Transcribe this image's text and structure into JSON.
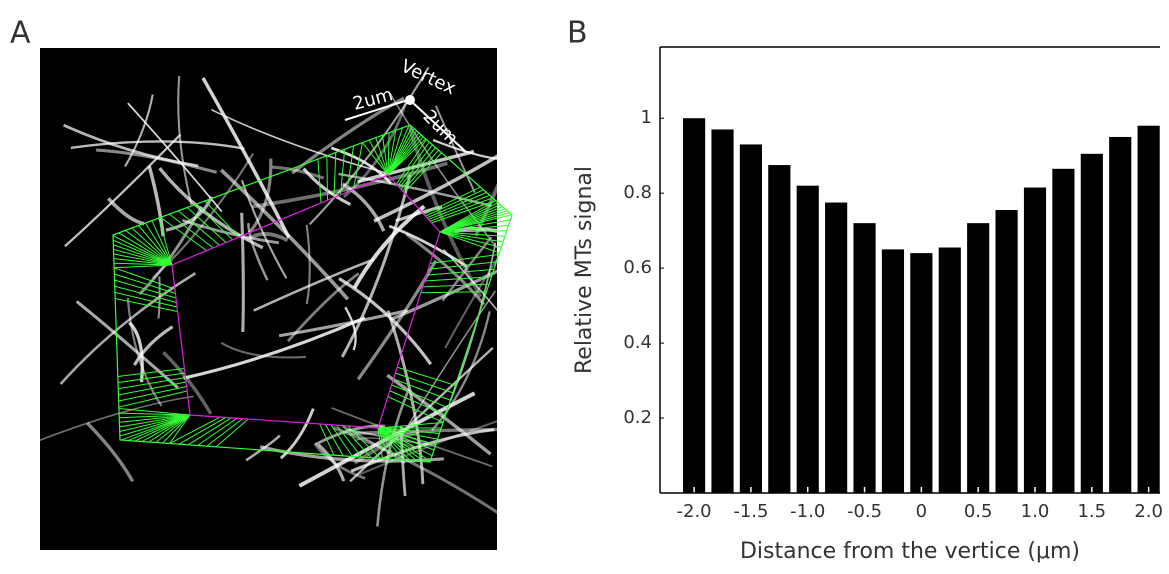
{
  "panel_labels": [
    "A",
    "B"
  ],
  "image_annotations": [
    "Vertex",
    "2um",
    "2um"
  ],
  "chart_data": {
    "type": "bar",
    "x": [
      -2.0,
      -1.75,
      -1.5,
      -1.25,
      -1.0,
      -0.75,
      -0.5,
      -0.25,
      0,
      0.25,
      0.5,
      0.75,
      1.0,
      1.25,
      1.5,
      1.75,
      2.0
    ],
    "values": [
      1.0,
      0.97,
      0.93,
      0.875,
      0.82,
      0.775,
      0.72,
      0.65,
      0.64,
      0.655,
      0.72,
      0.755,
      0.815,
      0.865,
      0.905,
      0.95,
      0.98
    ],
    "color": "#000000",
    "xlabel": "Distance from the vertice (μm)",
    "ylabel": "Relative MTs signal",
    "xlim": [
      -2.3,
      2.1
    ],
    "ylim": [
      0,
      1.19
    ],
    "xticks": [
      {
        "value": -2.0,
        "label": "-2.0"
      },
      {
        "value": -1.5,
        "label": "-1.5"
      },
      {
        "value": -1.0,
        "label": "-1.0"
      },
      {
        "value": -0.5,
        "label": "-0.5"
      },
      0,
      {
        "value": 0.5,
        "label": "0.5"
      },
      {
        "value": 1.0,
        "label": "1.0"
      },
      {
        "value": 1.5,
        "label": "1.5"
      },
      {
        "value": 2.0,
        "label": "2.0"
      }
    ],
    "yticks": [
      0.2,
      0.4,
      0.6,
      0.8,
      1
    ]
  }
}
